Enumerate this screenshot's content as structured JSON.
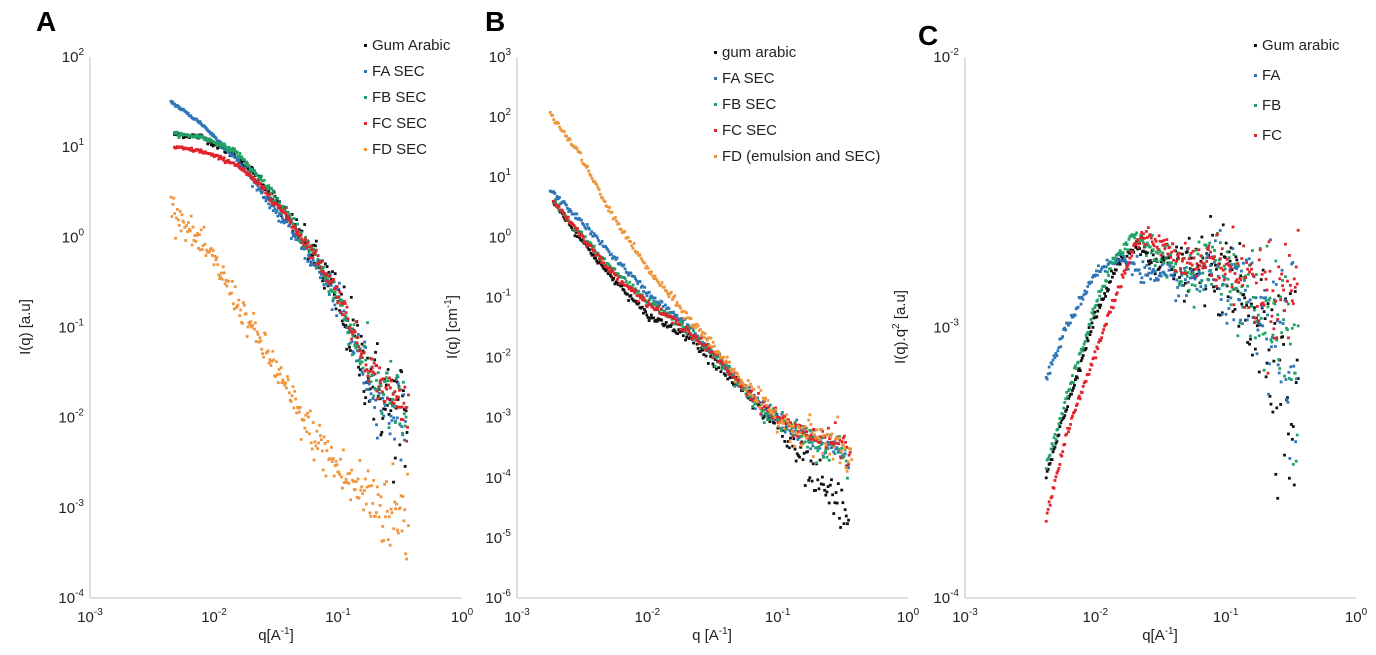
{
  "chart_data": [
    {
      "panel": "A",
      "type": "scatter",
      "xscale": "log",
      "yscale": "log",
      "xlim": [
        0.001,
        1
      ],
      "ylim": [
        0.0001,
        100
      ],
      "xlabel": "q[A^-1]",
      "ylabel": "I(q) [a.u]",
      "xticks": [
        {
          "base": "10",
          "exp": "-3"
        },
        {
          "base": "10",
          "exp": "-2"
        },
        {
          "base": "10",
          "exp": "-1"
        },
        {
          "base": "10",
          "exp": "0"
        }
      ],
      "yticks": [
        {
          "base": "10",
          "exp": "-4"
        },
        {
          "base": "10",
          "exp": "-3"
        },
        {
          "base": "10",
          "exp": "-2"
        },
        {
          "base": "10",
          "exp": "-1"
        },
        {
          "base": "10",
          "exp": "0"
        },
        {
          "base": "10",
          "exp": "1"
        },
        {
          "base": "10",
          "exp": "2"
        }
      ],
      "legend_position": "top-right",
      "series": [
        {
          "name": "Gum Arabic",
          "color": "#111111",
          "x_range": [
            0.0048,
            0.36
          ],
          "anchors": [
            [
              0.0048,
              14
            ],
            [
              0.008,
              13
            ],
            [
              0.015,
              8
            ],
            [
              0.025,
              4
            ],
            [
              0.04,
              1.6
            ],
            [
              0.07,
              0.5
            ],
            [
              0.1,
              0.2
            ],
            [
              0.15,
              0.05
            ],
            [
              0.2,
              0.022
            ],
            [
              0.3,
              0.01
            ],
            [
              0.36,
              0.008
            ]
          ],
          "noise_low": 0.03,
          "noise_high": 0.8
        },
        {
          "name": "FA SEC",
          "color": "#2e75b6",
          "x_range": [
            0.0045,
            0.35
          ],
          "anchors": [
            [
              0.0045,
              32
            ],
            [
              0.008,
              18
            ],
            [
              0.015,
              7.5
            ],
            [
              0.025,
              3
            ],
            [
              0.04,
              1.3
            ],
            [
              0.07,
              0.45
            ],
            [
              0.1,
              0.18
            ],
            [
              0.15,
              0.045
            ],
            [
              0.2,
              0.02
            ],
            [
              0.3,
              0.011
            ],
            [
              0.35,
              0.009
            ]
          ],
          "noise_low": 0.02,
          "noise_high": 0.5
        },
        {
          "name": "FB SEC",
          "color": "#21a366",
          "x_range": [
            0.0048,
            0.36
          ],
          "anchors": [
            [
              0.0048,
              14
            ],
            [
              0.008,
              13
            ],
            [
              0.015,
              9
            ],
            [
              0.025,
              4
            ],
            [
              0.04,
              1.7
            ],
            [
              0.07,
              0.52
            ],
            [
              0.1,
              0.21
            ],
            [
              0.15,
              0.055
            ],
            [
              0.2,
              0.025
            ],
            [
              0.3,
              0.013
            ],
            [
              0.36,
              0.01
            ]
          ],
          "noise_low": 0.02,
          "noise_high": 0.5
        },
        {
          "name": "FC SEC",
          "color": "#e0242b",
          "x_range": [
            0.0048,
            0.37
          ],
          "anchors": [
            [
              0.0048,
              10
            ],
            [
              0.008,
              9
            ],
            [
              0.015,
              6.5
            ],
            [
              0.025,
              3.5
            ],
            [
              0.04,
              1.6
            ],
            [
              0.07,
              0.55
            ],
            [
              0.1,
              0.24
            ],
            [
              0.15,
              0.06
            ],
            [
              0.2,
              0.028
            ],
            [
              0.3,
              0.015
            ],
            [
              0.37,
              0.012
            ]
          ],
          "noise_low": 0.02,
          "noise_high": 0.3
        },
        {
          "name": "FD SEC",
          "color": "#f0953c",
          "x_range": [
            0.0045,
            0.37
          ],
          "anchors": [
            [
              0.0045,
              2.3
            ],
            [
              0.007,
              1
            ],
            [
              0.01,
              0.55
            ],
            [
              0.02,
              0.1
            ],
            [
              0.03,
              0.04
            ],
            [
              0.05,
              0.01
            ],
            [
              0.08,
              0.004
            ],
            [
              0.12,
              0.002
            ],
            [
              0.2,
              0.0012
            ],
            [
              0.3,
              0.0008
            ],
            [
              0.37,
              0.0008
            ]
          ],
          "noise_low": 0.15,
          "noise_high": 0.6
        }
      ]
    },
    {
      "panel": "B",
      "type": "scatter",
      "xscale": "log",
      "yscale": "log",
      "xlim": [
        0.001,
        1
      ],
      "ylim": [
        1e-06,
        1000
      ],
      "xlabel": "q [A^-1]",
      "ylabel": "I(q) [cm^-1]",
      "xticks": [
        {
          "base": "10",
          "exp": "-3"
        },
        {
          "base": "10",
          "exp": "-2"
        },
        {
          "base": "10",
          "exp": "-1"
        },
        {
          "base": "10",
          "exp": "0"
        }
      ],
      "yticks": [
        {
          "base": "10",
          "exp": "-6"
        },
        {
          "base": "10",
          "exp": "-5"
        },
        {
          "base": "10",
          "exp": "-4"
        },
        {
          "base": "10",
          "exp": "-3"
        },
        {
          "base": "10",
          "exp": "-2"
        },
        {
          "base": "10",
          "exp": "-1"
        },
        {
          "base": "10",
          "exp": "0"
        },
        {
          "base": "10",
          "exp": "1"
        },
        {
          "base": "10",
          "exp": "2"
        },
        {
          "base": "10",
          "exp": "3"
        }
      ],
      "legend_position": "top-right",
      "series": [
        {
          "name": "gum arabic",
          "color": "#111111",
          "x_range": [
            0.0019,
            0.35
          ],
          "anchors": [
            [
              0.0019,
              4
            ],
            [
              0.003,
              1
            ],
            [
              0.005,
              0.25
            ],
            [
              0.01,
              0.05
            ],
            [
              0.02,
              0.025
            ],
            [
              0.04,
              0.006
            ],
            [
              0.07,
              0.0015
            ],
            [
              0.1,
              0.0008
            ],
            [
              0.15,
              0.0002
            ],
            [
              0.2,
              8e-05
            ],
            [
              0.3,
              3e-05
            ],
            [
              0.35,
              2e-05
            ]
          ],
          "noise_low": 0.05,
          "noise_high": 0.5
        },
        {
          "name": "FA SEC",
          "color": "#2e75b6",
          "x_range": [
            0.0018,
            0.35
          ],
          "anchors": [
            [
              0.0018,
              6
            ],
            [
              0.003,
              2
            ],
            [
              0.005,
              0.6
            ],
            [
              0.01,
              0.12
            ],
            [
              0.02,
              0.035
            ],
            [
              0.04,
              0.007
            ],
            [
              0.07,
              0.0018
            ],
            [
              0.1,
              0.0009
            ],
            [
              0.15,
              0.0005
            ],
            [
              0.2,
              0.0004
            ],
            [
              0.3,
              0.0003
            ],
            [
              0.35,
              0.0002
            ]
          ],
          "noise_low": 0.05,
          "noise_high": 0.3
        },
        {
          "name": "FB SEC",
          "color": "#21a366",
          "x_range": [
            0.0019,
            0.35
          ],
          "anchors": [
            [
              0.0019,
              4
            ],
            [
              0.003,
              1.2
            ],
            [
              0.005,
              0.35
            ],
            [
              0.01,
              0.09
            ],
            [
              0.02,
              0.03
            ],
            [
              0.04,
              0.0065
            ],
            [
              0.07,
              0.0017
            ],
            [
              0.1,
              0.0009
            ],
            [
              0.15,
              0.0005
            ],
            [
              0.2,
              0.00035
            ],
            [
              0.3,
              0.0003
            ],
            [
              0.35,
              0.0002
            ]
          ],
          "noise_low": 0.05,
          "noise_high": 0.3
        },
        {
          "name": "FC SEC",
          "color": "#e0242b",
          "x_range": [
            0.0019,
            0.36
          ],
          "anchors": [
            [
              0.0019,
              4
            ],
            [
              0.003,
              1.2
            ],
            [
              0.005,
              0.3
            ],
            [
              0.01,
              0.08
            ],
            [
              0.02,
              0.03
            ],
            [
              0.04,
              0.007
            ],
            [
              0.07,
              0.0019
            ],
            [
              0.1,
              0.001
            ],
            [
              0.15,
              0.0006
            ],
            [
              0.2,
              0.00045
            ],
            [
              0.3,
              0.0004
            ],
            [
              0.36,
              0.0003
            ]
          ],
          "noise_low": 0.05,
          "noise_high": 0.25
        },
        {
          "name": "FD (emulsion and SEC)",
          "color": "#f0953c",
          "x_range": [
            0.0018,
            0.37
          ],
          "anchors": [
            [
              0.0018,
              110
            ],
            [
              0.003,
              25
            ],
            [
              0.005,
              3
            ],
            [
              0.007,
              1
            ],
            [
              0.01,
              0.3
            ],
            [
              0.02,
              0.05
            ],
            [
              0.04,
              0.009
            ],
            [
              0.07,
              0.002
            ],
            [
              0.1,
              0.001
            ],
            [
              0.15,
              0.0006
            ],
            [
              0.2,
              0.0005
            ],
            [
              0.3,
              0.0003
            ],
            [
              0.37,
              0.0002
            ]
          ],
          "noise_low": 0.05,
          "noise_high": 0.4
        }
      ]
    },
    {
      "panel": "C",
      "type": "scatter",
      "xscale": "log",
      "yscale": "log",
      "xlim": [
        0.001,
        1
      ],
      "ylim": [
        0.0001,
        0.01
      ],
      "xlabel": "q[A^-1]",
      "ylabel": "I(q).q^2 [a.u]",
      "xticks": [
        {
          "base": "10",
          "exp": "-3"
        },
        {
          "base": "10",
          "exp": "-2"
        },
        {
          "base": "10",
          "exp": "-1"
        },
        {
          "base": "10",
          "exp": "0"
        }
      ],
      "yticks": [
        {
          "base": "10",
          "exp": "-4"
        },
        {
          "base": "10",
          "exp": "-3"
        },
        {
          "base": "10",
          "exp": "-2"
        }
      ],
      "legend_position": "top-right",
      "series": [
        {
          "name": "Gum arabic",
          "color": "#111111",
          "x_range": [
            0.0042,
            0.36
          ],
          "anchors": [
            [
              0.0042,
              0.00028
            ],
            [
              0.006,
              0.0005
            ],
            [
              0.01,
              0.0011
            ],
            [
              0.015,
              0.0017
            ],
            [
              0.02,
              0.002
            ],
            [
              0.03,
              0.0018
            ],
            [
              0.05,
              0.0016
            ],
            [
              0.08,
              0.0017
            ],
            [
              0.12,
              0.0014
            ],
            [
              0.18,
              0.0011
            ],
            [
              0.25,
              0.0008
            ],
            [
              0.3,
              0.0006
            ],
            [
              0.36,
              0.0005
            ]
          ],
          "noise_low": 0.02,
          "noise_high": 0.45
        },
        {
          "name": "FA",
          "color": "#2e75b6",
          "x_range": [
            0.0042,
            0.35
          ],
          "anchors": [
            [
              0.0042,
              0.00065
            ],
            [
              0.006,
              0.001
            ],
            [
              0.01,
              0.0016
            ],
            [
              0.015,
              0.0018
            ],
            [
              0.02,
              0.0017
            ],
            [
              0.03,
              0.0015
            ],
            [
              0.05,
              0.0015
            ],
            [
              0.08,
              0.0016
            ],
            [
              0.12,
              0.0013
            ],
            [
              0.18,
              0.0011
            ],
            [
              0.25,
              0.0009
            ],
            [
              0.3,
              0.0008
            ],
            [
              0.35,
              0.0008
            ]
          ],
          "noise_low": 0.02,
          "noise_high": 0.35
        },
        {
          "name": "FB",
          "color": "#21a366",
          "x_range": [
            0.0042,
            0.36
          ],
          "anchors": [
            [
              0.0042,
              0.0003
            ],
            [
              0.006,
              0.00055
            ],
            [
              0.01,
              0.0012
            ],
            [
              0.015,
              0.0019
            ],
            [
              0.02,
              0.0022
            ],
            [
              0.03,
              0.0019
            ],
            [
              0.05,
              0.0016
            ],
            [
              0.08,
              0.0018
            ],
            [
              0.12,
              0.0015
            ],
            [
              0.18,
              0.0012
            ],
            [
              0.25,
              0.001
            ],
            [
              0.3,
              0.0009
            ],
            [
              0.36,
              0.0008
            ]
          ],
          "noise_low": 0.02,
          "noise_high": 0.35
        },
        {
          "name": "FC",
          "color": "#e0242b",
          "x_range": [
            0.0042,
            0.36
          ],
          "anchors": [
            [
              0.0042,
              0.0002
            ],
            [
              0.006,
              0.0004
            ],
            [
              0.01,
              0.0008
            ],
            [
              0.015,
              0.0014
            ],
            [
              0.02,
              0.002
            ],
            [
              0.025,
              0.0022
            ],
            [
              0.04,
              0.0019
            ],
            [
              0.06,
              0.0017
            ],
            [
              0.08,
              0.0018
            ],
            [
              0.12,
              0.0016
            ],
            [
              0.18,
              0.0014
            ],
            [
              0.25,
              0.0013
            ],
            [
              0.3,
              0.0014
            ],
            [
              0.36,
              0.0014
            ]
          ],
          "noise_low": 0.02,
          "noise_high": 0.25
        }
      ]
    }
  ]
}
